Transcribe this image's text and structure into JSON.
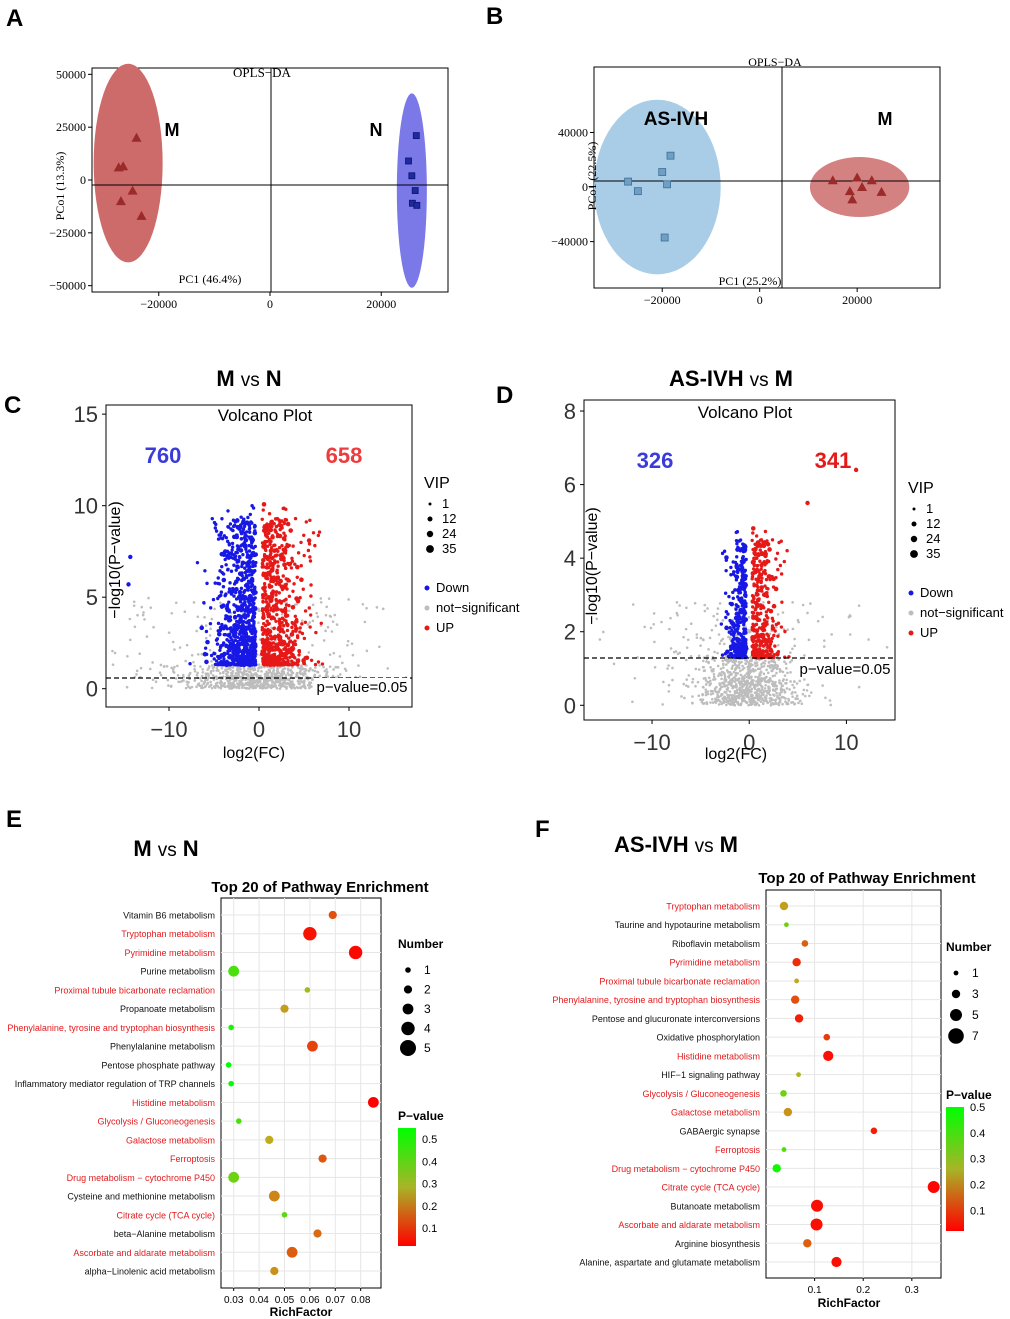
{
  "colors": {
    "red_ellipse": "#cd6b6b",
    "blue_ellipse": "#7b78e8",
    "lightblue_ellipse": "#a9cde6",
    "marker_red": "#9b2a2a",
    "marker_blue": "#1e2aa0",
    "marker_lightblue": "#6f9fc4",
    "down": "#1818e6",
    "up": "#e61818",
    "ns": "#bdbdbd",
    "count_down": "#3b3bdc",
    "count_up": "#ee3b3b",
    "highlight_label": "#e31a1c"
  },
  "panel_a": {
    "letter": "A",
    "title": "OPLS−DA",
    "xlabel": "PC1 (46.4%)",
    "ylabel": "PCo1 (13.3%)",
    "chart_data": {
      "type": "scatter",
      "title": "OPLS−DA",
      "xlim": [
        -32000,
        32000
      ],
      "ylim": [
        -53000,
        53000
      ],
      "xticks": [
        -20000,
        0,
        20000
      ],
      "xtick_labels": [
        "−20000",
        "0",
        "20000"
      ],
      "yticks": [
        50000,
        25000,
        0,
        -25000,
        -50000
      ],
      "ytick_labels": [
        "50000",
        "25000",
        "0",
        "−25000",
        "−50000"
      ],
      "groups": [
        {
          "name": "M",
          "marker": "triangle",
          "ellipse": {
            "cx": -25500,
            "cy": 8000,
            "rx": 6200,
            "ry": 47000
          },
          "points": [
            [
              -24000,
              20000
            ],
            [
              -27200,
              6000
            ],
            [
              -26400,
              6500
            ],
            [
              -24700,
              -5000
            ],
            [
              -26800,
              -10000
            ],
            [
              -23100,
              -17000
            ]
          ]
        },
        {
          "name": "N",
          "marker": "square",
          "ellipse": {
            "cx": 25500,
            "cy": -5000,
            "rx": 2700,
            "ry": 46000
          },
          "points": [
            [
              26300,
              21000
            ],
            [
              24900,
              9000
            ],
            [
              25500,
              2000
            ],
            [
              26100,
              -5000
            ],
            [
              25600,
              -11000
            ],
            [
              26400,
              -12000
            ]
          ]
        }
      ]
    }
  },
  "panel_b": {
    "letter": "B",
    "title": "OPLS−DA",
    "xlabel": "PC1 (25.2%)",
    "ylabel": "PCo1 (22.5%)",
    "chart_data": {
      "type": "scatter",
      "title": "OPLS−DA",
      "xlim": [
        -34000,
        37000
      ],
      "ylim": [
        -74000,
        88000
      ],
      "xticks": [
        -20000,
        0,
        20000
      ],
      "xtick_labels": [
        "−20000",
        "0",
        "20000"
      ],
      "yticks": [
        40000,
        0,
        -40000
      ],
      "ytick_labels": [
        "40000",
        "0",
        "−40000"
      ],
      "groups": [
        {
          "name": "AS-IVH",
          "marker": "square",
          "ellipse": {
            "cx": -21000,
            "cy": 0,
            "rx": 13000,
            "ry": 64000
          },
          "points": [
            [
              -27000,
              4000
            ],
            [
              -25000,
              -3000
            ],
            [
              -20000,
              11000
            ],
            [
              -19000,
              2000
            ],
            [
              -18300,
              23000
            ],
            [
              -19500,
              -37000
            ]
          ]
        },
        {
          "name": "M",
          "marker": "triangle",
          "ellipse": {
            "cx": 20500,
            "cy": 0,
            "rx": 10200,
            "ry": 22000
          },
          "points": [
            [
              15000,
              5000
            ],
            [
              20000,
              7000
            ],
            [
              23000,
              5000
            ],
            [
              18500,
              -3000
            ],
            [
              25000,
              -3500
            ],
            [
              19000,
              -9000
            ],
            [
              21000,
              0
            ]
          ]
        }
      ]
    }
  },
  "panel_c": {
    "letter": "C",
    "heading_a": "M",
    "heading_vs": "vs",
    "heading_b": "N",
    "plot_title": "Volcano Plot",
    "down_count": "760",
    "up_count": "658",
    "xlabel": "log2(FC)",
    "ylabel": "−log10(P−value)",
    "threshold_label": "p−value=0.05",
    "legend_vip_title": "VIP",
    "vip_labels": [
      "1",
      "12",
      "24",
      "35"
    ],
    "legend_down": "Down",
    "legend_ns": "not−significant",
    "legend_up": "UP",
    "chart_data": {
      "type": "scatter",
      "title": "Volcano Plot",
      "xlim": [
        -17,
        17
      ],
      "ylim": [
        -1,
        15.5
      ],
      "xticks": [
        -10,
        0,
        10
      ],
      "xtick_labels": [
        "−10",
        "0",
        "10"
      ],
      "yticks": [
        0,
        5,
        10,
        15
      ],
      "ytick_labels": [
        "0",
        "5",
        "10",
        "15"
      ],
      "threshold_y": 1.3,
      "series": [
        {
          "name": "Down",
          "count": 760,
          "approx_x_range": [
            -9.5,
            -0.4
          ],
          "approx_max_y": 11.5
        },
        {
          "name": "not-significant",
          "approx_x_range": [
            -16,
            16
          ]
        },
        {
          "name": "UP",
          "count": 658,
          "approx_x_range": [
            0.4,
            10
          ],
          "approx_max_y": 11
        }
      ],
      "outliers": [
        [
          -14.3,
          7.2
        ],
        [
          -14.5,
          5.7
        ]
      ]
    }
  },
  "panel_d": {
    "letter": "D",
    "heading_a": "AS-IVH",
    "heading_vs": "vs",
    "heading_b": "M",
    "plot_title": "Volcano Plot",
    "down_count": "326",
    "up_count": "341",
    "xlabel": "log2(FC)",
    "ylabel": "−log10(P−value)",
    "threshold_label": "p−value=0.05",
    "legend_vip_title": "VIP",
    "vip_labels": [
      "1",
      "12",
      "24",
      "35"
    ],
    "legend_down": "Down",
    "legend_ns": "not−significant",
    "legend_up": "UP",
    "chart_data": {
      "type": "scatter",
      "title": "Volcano Plot",
      "xlim": [
        -17,
        15
      ],
      "ylim": [
        -0.4,
        8.3
      ],
      "xticks": [
        -10,
        0,
        10
      ],
      "xtick_labels": [
        "−10",
        "0",
        "10"
      ],
      "yticks": [
        0,
        2,
        4,
        6,
        8
      ],
      "ytick_labels": [
        "0",
        "2",
        "4",
        "6",
        "8"
      ],
      "threshold_y": 1.3,
      "series": [
        {
          "name": "Down",
          "count": 326,
          "approx_x_range": [
            -3,
            -0.3
          ],
          "approx_max_y": 4.8
        },
        {
          "name": "not-significant",
          "approx_x_range": [
            -15,
            14
          ]
        },
        {
          "name": "UP",
          "count": 341,
          "approx_x_range": [
            0.3,
            12
          ],
          "approx_max_y": 6.5
        }
      ],
      "outliers": [
        [
          11,
          6.4
        ],
        [
          6,
          5.5
        ]
      ]
    }
  },
  "panel_e": {
    "letter": "E",
    "heading_a": "M",
    "heading_vs": "vs",
    "heading_b": "N",
    "title": "Top 20 of Pathway Enrichment",
    "xlabel": "RichFactor",
    "legend_number_title": "Number",
    "number_labels": [
      "1",
      "2",
      "3",
      "4",
      "5"
    ],
    "legend_p_title": "P−value",
    "p_labels": [
      "0.5",
      "0.4",
      "0.3",
      "0.2",
      "0.1"
    ],
    "chart_data": {
      "type": "scatter",
      "title": "Top 20 of Pathway Enrichment",
      "xlabel": "RichFactor",
      "xlim": [
        0.025,
        0.088
      ],
      "xticks": [
        0.03,
        0.04,
        0.05,
        0.06,
        0.07,
        0.08
      ],
      "xtick_labels": [
        "0.03",
        "0.04",
        "0.05",
        "0.06",
        "0.07",
        "0.08"
      ],
      "color_range": [
        0.02,
        0.55
      ],
      "pathways": [
        {
          "name": "Vitamin B6 metabolism",
          "x": 0.069,
          "number": 2,
          "p": 0.14,
          "highlight": false
        },
        {
          "name": "Tryptophan metabolism",
          "x": 0.06,
          "number": 4,
          "p": 0.05,
          "highlight": true
        },
        {
          "name": "Pyrimidine metabolism",
          "x": 0.078,
          "number": 4,
          "p": 0.03,
          "highlight": true
        },
        {
          "name": "Purine metabolism",
          "x": 0.03,
          "number": 3,
          "p": 0.45,
          "highlight": false
        },
        {
          "name": "Proximal tubule bicarbonate reclamation",
          "x": 0.059,
          "number": 1,
          "p": 0.32,
          "highlight": true
        },
        {
          "name": "Propanoate metabolism",
          "x": 0.05,
          "number": 2,
          "p": 0.26,
          "highlight": false
        },
        {
          "name": "Phenylalanine, tyrosine and tryptophan biosynthesis",
          "x": 0.029,
          "number": 1,
          "p": 0.52,
          "highlight": true
        },
        {
          "name": "Phenylalanine metabolism",
          "x": 0.061,
          "number": 3,
          "p": 0.12,
          "highlight": false
        },
        {
          "name": "Pentose phosphate pathway",
          "x": 0.028,
          "number": 1,
          "p": 0.55,
          "highlight": false
        },
        {
          "name": "Inflammatory mediator regulation of TRP channels",
          "x": 0.029,
          "number": 1,
          "p": 0.55,
          "highlight": false
        },
        {
          "name": "Histidine metabolism",
          "x": 0.085,
          "number": 3,
          "p": 0.02,
          "highlight": true
        },
        {
          "name": "Glycolysis / Gluconeogenesis",
          "x": 0.032,
          "number": 1,
          "p": 0.45,
          "highlight": true
        },
        {
          "name": "Galactose metabolism",
          "x": 0.044,
          "number": 2,
          "p": 0.28,
          "highlight": true
        },
        {
          "name": "Ferroptosis",
          "x": 0.065,
          "number": 2,
          "p": 0.15,
          "highlight": true
        },
        {
          "name": "Drug metabolism − cytochrome P450",
          "x": 0.03,
          "number": 3,
          "p": 0.4,
          "highlight": true
        },
        {
          "name": "Cysteine and methionine metabolism",
          "x": 0.046,
          "number": 3,
          "p": 0.22,
          "highlight": false
        },
        {
          "name": "Citrate cycle (TCA cycle)",
          "x": 0.05,
          "number": 1,
          "p": 0.42,
          "highlight": true
        },
        {
          "name": "beta−Alanine metabolism",
          "x": 0.063,
          "number": 2,
          "p": 0.18,
          "highlight": false
        },
        {
          "name": "Ascorbate and aldarate metabolism",
          "x": 0.053,
          "number": 3,
          "p": 0.16,
          "highlight": true
        },
        {
          "name": "alpha−Linolenic acid metabolism",
          "x": 0.046,
          "number": 2,
          "p": 0.24,
          "highlight": false
        }
      ]
    }
  },
  "panel_f": {
    "letter": "F",
    "heading_a": "AS-IVH",
    "heading_vs": "vs",
    "heading_b": "M",
    "title": "Top 20 of Pathway Enrichment",
    "xlabel": "RichFactor",
    "legend_number_title": "Number",
    "number_labels": [
      "1",
      "3",
      "5",
      "7"
    ],
    "legend_p_title": "P−value",
    "p_labels": [
      "0.5",
      "0.4",
      "0.3",
      "0.2",
      "0.1"
    ],
    "chart_data": {
      "type": "scatter",
      "title": "Top 20 of Pathway Enrichment",
      "xlabel": "RichFactor",
      "xlim": [
        0.0,
        0.36
      ],
      "xticks": [
        0.1,
        0.2,
        0.3
      ],
      "xtick_labels": [
        "0.1",
        "0.2",
        "0.3"
      ],
      "color_range": [
        0.02,
        0.5
      ],
      "pathways": [
        {
          "name": "Tryptophan metabolism",
          "x": 0.037,
          "number": 3,
          "p": 0.24,
          "highlight": true
        },
        {
          "name": "Taurine and hypotaurine metabolism",
          "x": 0.042,
          "number": 1,
          "p": 0.36,
          "highlight": false
        },
        {
          "name": "Riboflavin metabolism",
          "x": 0.08,
          "number": 2,
          "p": 0.15,
          "highlight": false
        },
        {
          "name": "Pyrimidine metabolism",
          "x": 0.063,
          "number": 3,
          "p": 0.08,
          "highlight": true
        },
        {
          "name": "Proximal tubule bicarbonate reclamation",
          "x": 0.063,
          "number": 1,
          "p": 0.25,
          "highlight": true
        },
        {
          "name": "Phenylalanine, tyrosine and tryptophan biosynthesis",
          "x": 0.06,
          "number": 3,
          "p": 0.13,
          "highlight": true
        },
        {
          "name": "Pentose and glucuronate interconversions",
          "x": 0.068,
          "number": 3,
          "p": 0.06,
          "highlight": false
        },
        {
          "name": "Oxidative phosphorylation",
          "x": 0.125,
          "number": 2,
          "p": 0.1,
          "highlight": false
        },
        {
          "name": "Histidine metabolism",
          "x": 0.128,
          "number": 4,
          "p": 0.04,
          "highlight": true
        },
        {
          "name": "HIF−1 signaling pathway",
          "x": 0.067,
          "number": 1,
          "p": 0.28,
          "highlight": false
        },
        {
          "name": "Glycolysis / Gluconeogenesis",
          "x": 0.036,
          "number": 2,
          "p": 0.36,
          "highlight": true
        },
        {
          "name": "Galactose metabolism",
          "x": 0.045,
          "number": 3,
          "p": 0.22,
          "highlight": true
        },
        {
          "name": "GABAergic synapse",
          "x": 0.222,
          "number": 2,
          "p": 0.06,
          "highlight": false
        },
        {
          "name": "Ferroptosis",
          "x": 0.037,
          "number": 1,
          "p": 0.4,
          "highlight": true
        },
        {
          "name": "Drug metabolism − cytochrome P450",
          "x": 0.022,
          "number": 3,
          "p": 0.48,
          "highlight": true
        },
        {
          "name": "Citrate cycle (TCA cycle)",
          "x": 0.345,
          "number": 5,
          "p": 0.03,
          "highlight": true
        },
        {
          "name": "Butanoate metabolism",
          "x": 0.105,
          "number": 5,
          "p": 0.04,
          "highlight": false
        },
        {
          "name": "Ascorbate and aldarate metabolism",
          "x": 0.104,
          "number": 5,
          "p": 0.04,
          "highlight": true
        },
        {
          "name": "Arginine biosynthesis",
          "x": 0.085,
          "number": 3,
          "p": 0.15,
          "highlight": false
        },
        {
          "name": "Alanine, aspartate and glutamate metabolism",
          "x": 0.145,
          "number": 4,
          "p": 0.04,
          "highlight": false
        }
      ]
    }
  }
}
